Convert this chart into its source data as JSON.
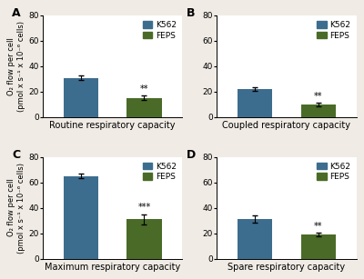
{
  "panels": [
    {
      "label": "A",
      "title": "Routine respiratory capacity",
      "k562_mean": 31.0,
      "k562_err": 2.0,
      "feps_mean": 15.0,
      "feps_err": 1.8,
      "sig": "**",
      "ylim": [
        0,
        80
      ]
    },
    {
      "label": "B",
      "title": "Coupled respiratory capacity",
      "k562_mean": 22.0,
      "k562_err": 1.5,
      "feps_mean": 10.0,
      "feps_err": 1.2,
      "sig": "**",
      "ylim": [
        0,
        80
      ]
    },
    {
      "label": "C",
      "title": "Maximum respiratory capacity",
      "k562_mean": 65.0,
      "k562_err": 2.0,
      "feps_mean": 31.0,
      "feps_err": 4.0,
      "sig": "***",
      "ylim": [
        0,
        80
      ]
    },
    {
      "label": "D",
      "title": "Spare respiratory capacity",
      "k562_mean": 31.0,
      "k562_err": 3.0,
      "feps_mean": 19.0,
      "feps_err": 1.5,
      "sig": "**",
      "ylim": [
        0,
        80
      ]
    }
  ],
  "k562_color": "#3d6d8e",
  "feps_color": "#4a6b28",
  "bar_width": 0.55,
  "ylabel": "O₂ flow per cell\n(pmol x s⁻¹ x 10⁻⁶ cells)",
  "background_color": "#ffffff",
  "outer_bg": "#f0ebe4",
  "label_fontsize": 8,
  "tick_fontsize": 6.5,
  "title_fontsize": 7,
  "legend_fontsize": 6.5
}
